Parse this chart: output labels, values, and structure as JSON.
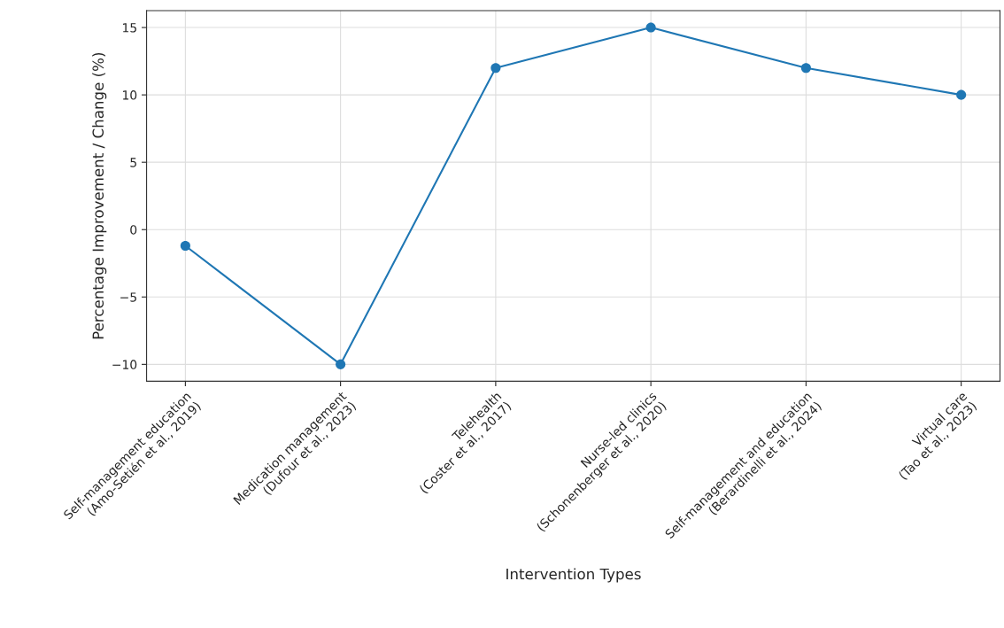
{
  "chart_data": {
    "type": "line",
    "categories": [
      "Self-management education\n(Amo-Setién et al., 2019)",
      "Medication management\n(Dufour et al., 2023)",
      "Telehealth\n(Coster et al., 2017)",
      "Nurse-led clinics\n(Schonenberger et al., 2020)",
      "Self-management and education\n(Berardinelli et al., 2024)",
      "Virtual care\n(Tao et al., 2023)"
    ],
    "series": [
      {
        "color": "#1f77b4",
        "values": [
          -1.2,
          -10,
          12,
          15,
          12,
          10
        ]
      }
    ],
    "xlabel": "Intervention Types",
    "ylabel": "Percentage Improvement / Change (%)",
    "ylim": [
      -11.25,
      16.25
    ],
    "yticks": [
      {
        "value": -10,
        "label": "−10"
      },
      {
        "value": -5,
        "label": "−5"
      },
      0,
      5,
      10,
      15
    ],
    "grid": true,
    "marker": "circle",
    "line_style": "solid"
  }
}
